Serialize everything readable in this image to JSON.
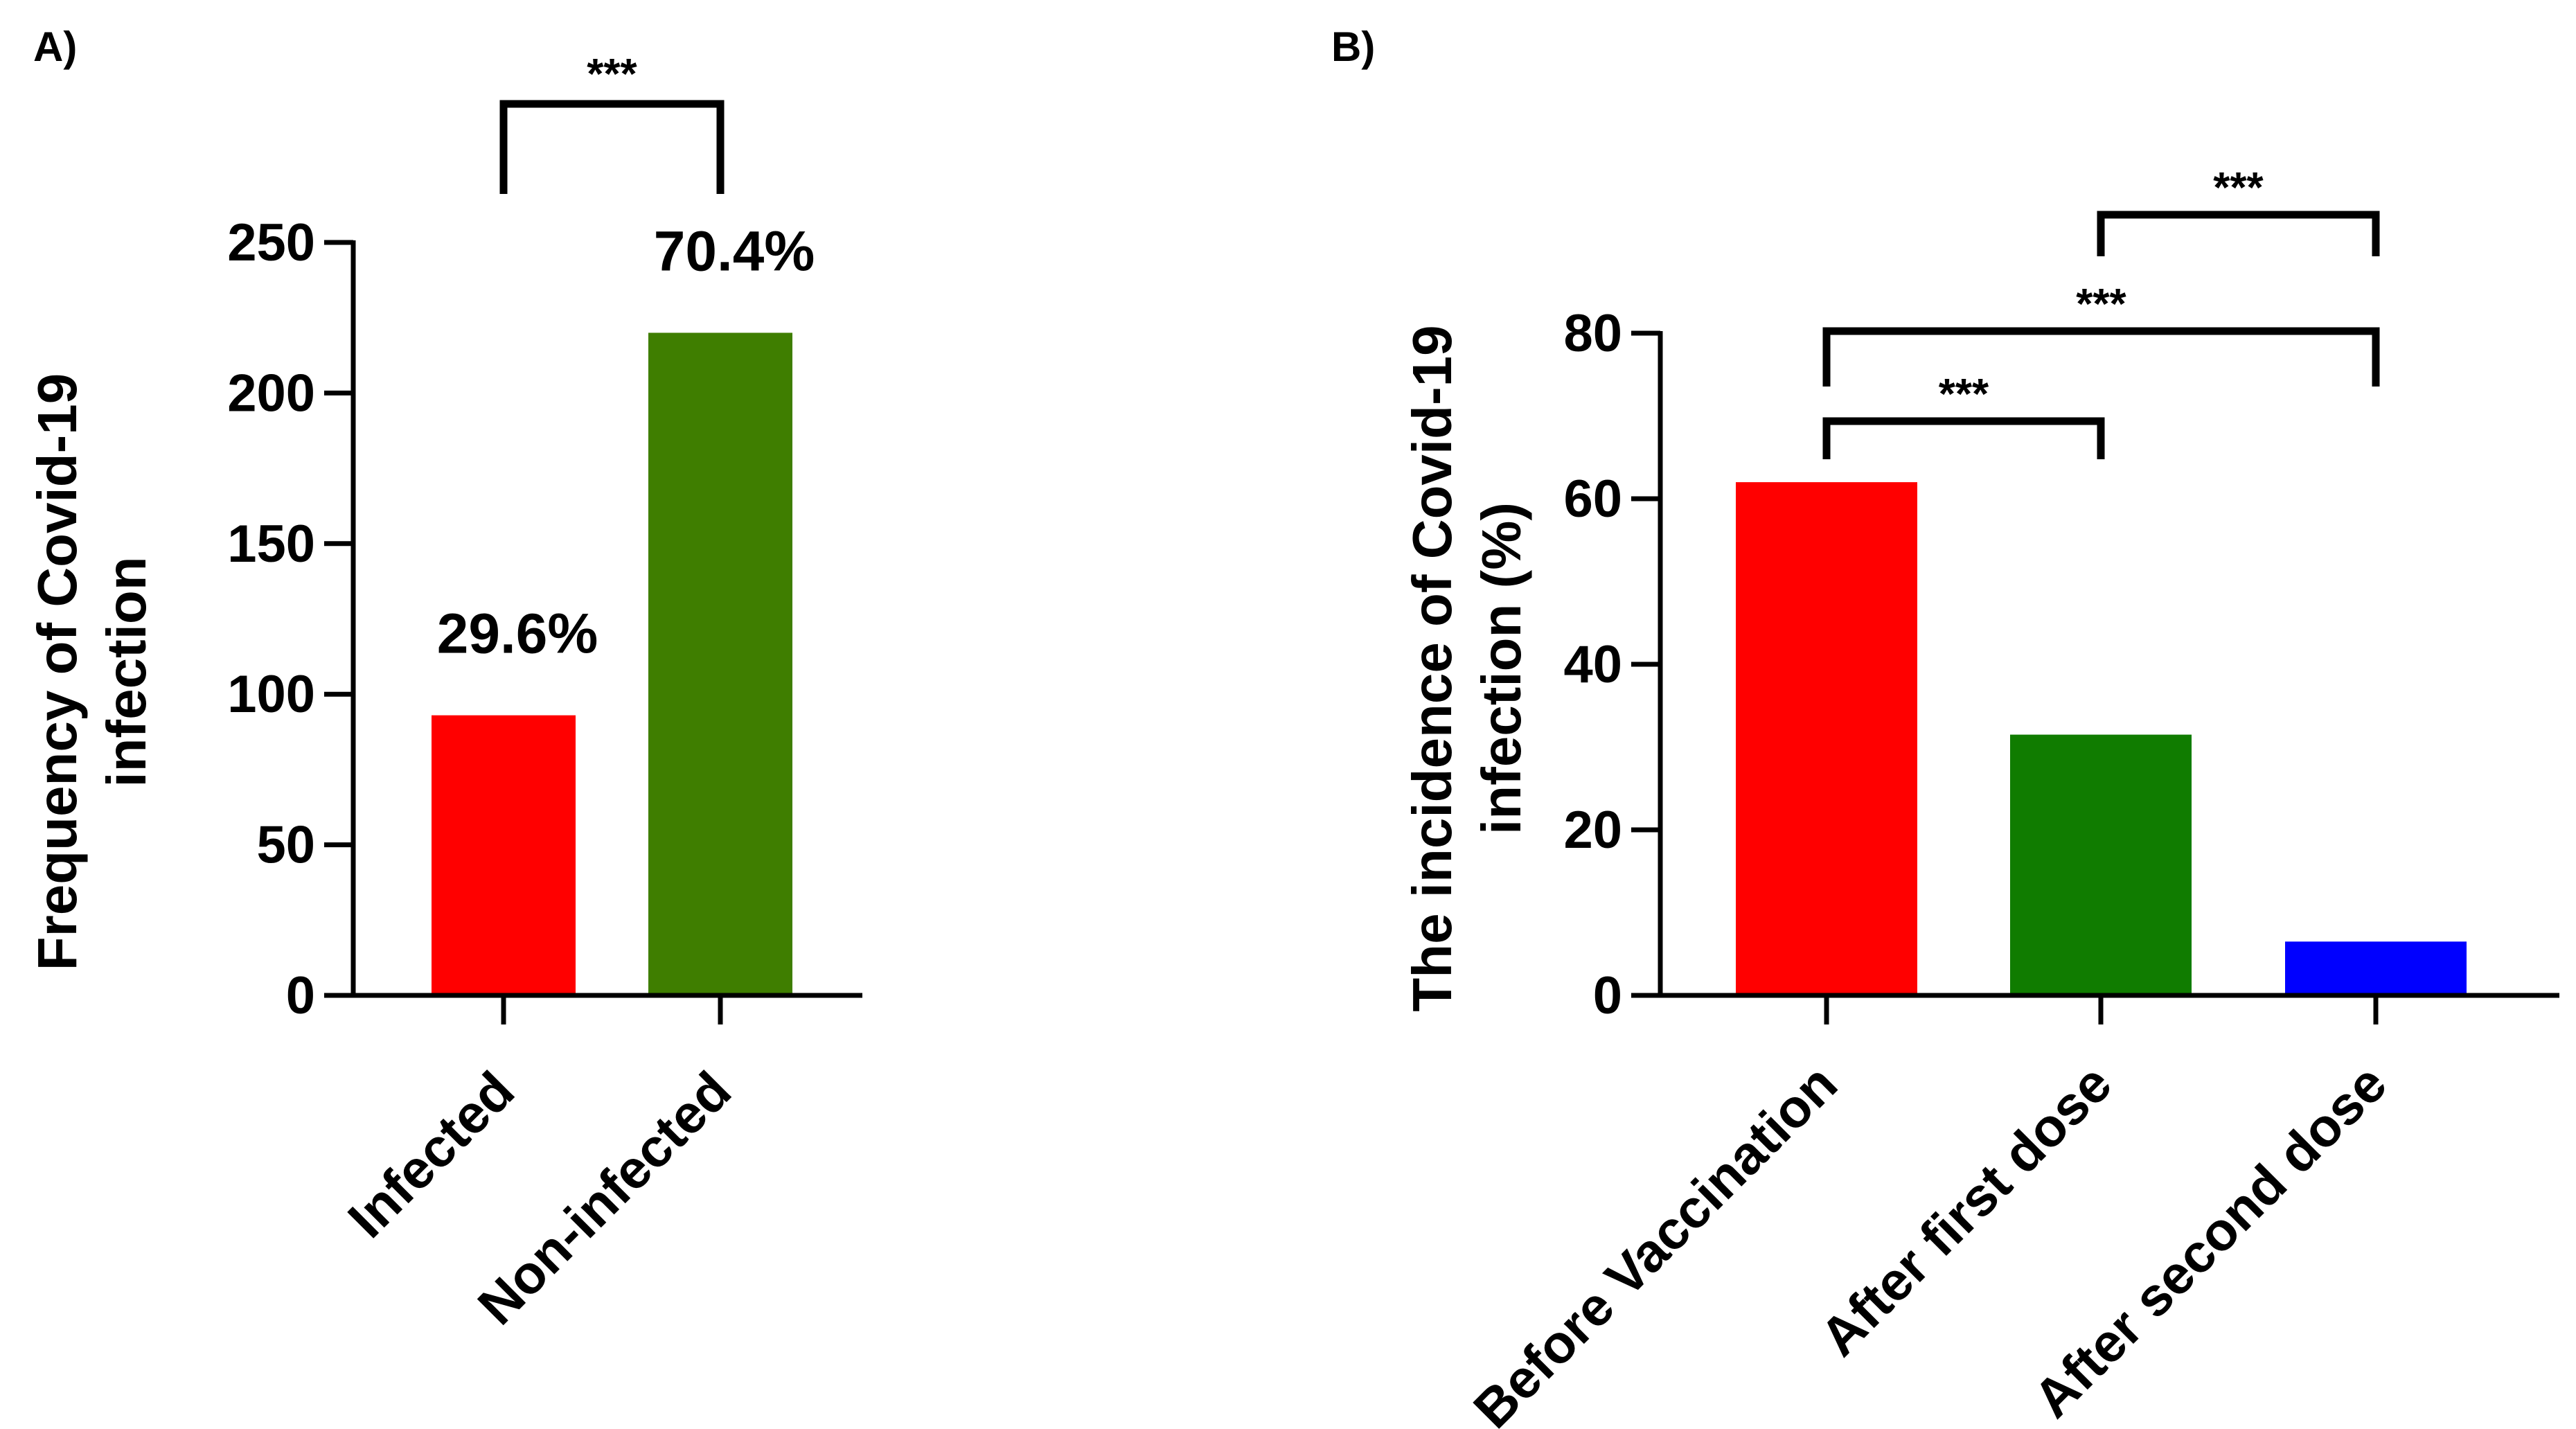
{
  "chart_data": [
    {
      "panel_label": "A)",
      "type": "bar",
      "categories": [
        "Infected",
        "Non-infected"
      ],
      "values": [
        93,
        220
      ],
      "colors": [
        "#ff0000",
        "#3f7e00"
      ],
      "data_labels": [
        "29.6%",
        "70.4%"
      ],
      "ylabel_lines": [
        "Frequency of Covid-19",
        "infection"
      ],
      "ylim": [
        0,
        250
      ],
      "yticks": [
        0,
        50,
        100,
        150,
        200,
        250
      ],
      "ytick_labels": [
        "0",
        "50",
        "100",
        "150",
        "200",
        "250"
      ],
      "significance": [
        {
          "from": 0,
          "to": 1,
          "label": "***"
        }
      ]
    },
    {
      "panel_label": "B)",
      "type": "bar",
      "categories": [
        "Before Vaccination",
        "After first dose",
        "After second dose"
      ],
      "values": [
        62,
        31.5,
        6.5
      ],
      "colors": [
        "#ff0000",
        "#107c00",
        "#0000ff"
      ],
      "ylabel_lines": [
        "The incidence of Covid-19",
        "infection (%)"
      ],
      "ylim": [
        0,
        80
      ],
      "yticks": [
        0,
        20,
        40,
        60,
        80
      ],
      "ytick_labels": [
        "0",
        "20",
        "40",
        "60",
        "80"
      ],
      "significance": [
        {
          "from": 1,
          "to": 2,
          "label": "***"
        },
        {
          "from": 0,
          "to": 2,
          "label": "***"
        },
        {
          "from": 0,
          "to": 1,
          "label": "***"
        }
      ]
    }
  ]
}
